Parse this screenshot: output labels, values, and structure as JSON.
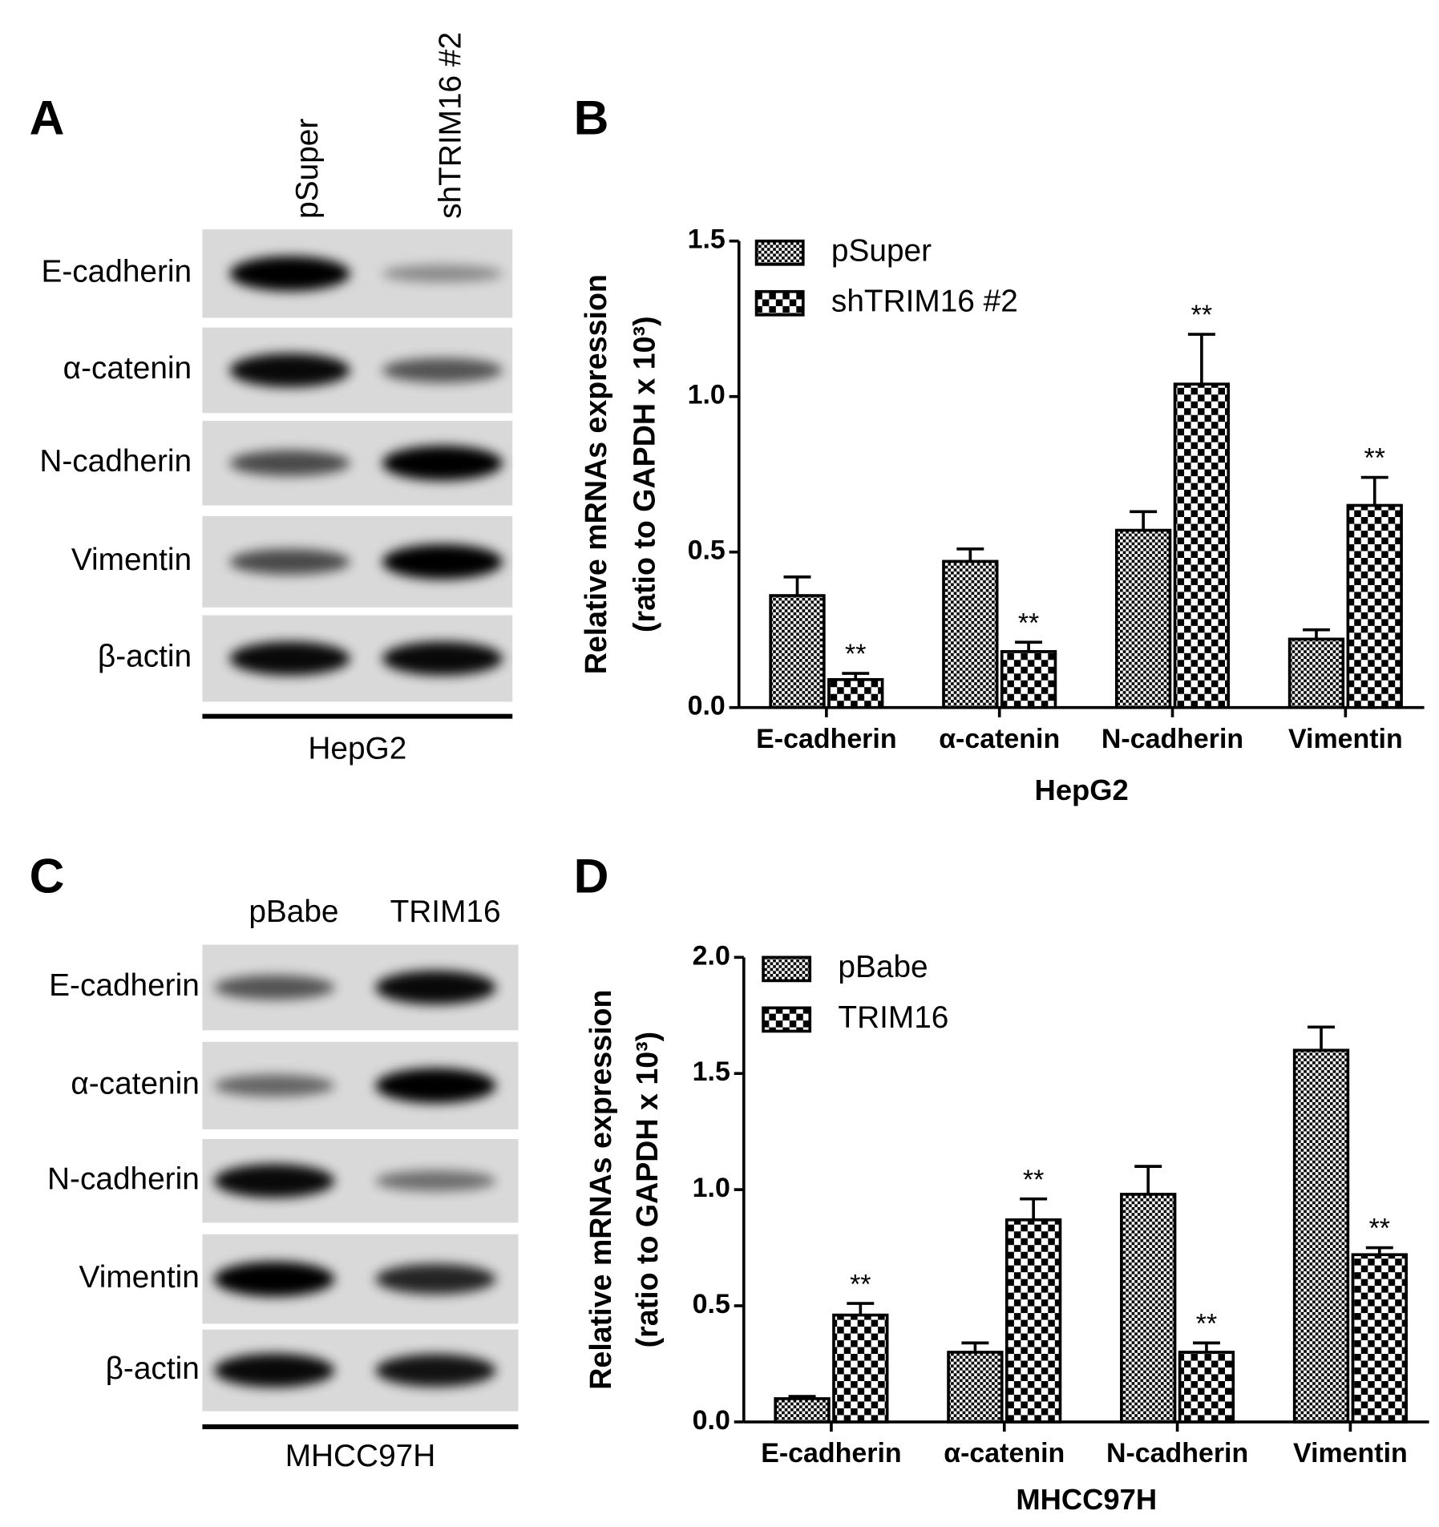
{
  "blots": [
    {
      "panel_label": "A",
      "lanes": [
        "pSuper",
        "shTRIM16 #2"
      ],
      "proteins": [
        "E-cadherin",
        "α-catenin",
        "N-cadherin",
        "Vimentin",
        "β-actin"
      ],
      "cell_line": "HepG2"
    },
    {
      "panel_label": "C",
      "lanes": [
        "pBabe",
        "TRIM16"
      ],
      "proteins": [
        "E-cadherin",
        "α-catenin",
        "N-cadherin",
        "Vimentin",
        "β-actin"
      ],
      "cell_line": "MHCC97H"
    }
  ],
  "chart_data": [
    {
      "type": "bar",
      "panel_label": "B",
      "categories": [
        "E-cadherin",
        "α-catenin",
        "N-cadherin",
        "Vimentin"
      ],
      "xlabel": "HepG2",
      "ylabel": [
        "Relative  mRNAs expression",
        "(ratio to  GAPDH x 10³)"
      ],
      "ylim": [
        0,
        1.5
      ],
      "yticks": [
        {
          "value": 0,
          "label": "0.0"
        },
        {
          "value": 0.5,
          "label": "0.5"
        },
        {
          "value": 1,
          "label": "1.0"
        },
        {
          "value": 1.5,
          "label": "1.5"
        }
      ],
      "legend": "upper left",
      "series": [
        {
          "name": "pSuper",
          "color": "#000000",
          "pattern": "fine",
          "values": [
            0.36,
            0.47,
            0.57,
            0.22
          ],
          "errors": [
            0.06,
            0.04,
            0.06,
            0.03
          ]
        },
        {
          "name": "shTRIM16 #2",
          "color": "#000000",
          "pattern": "coarse",
          "values": [
            0.09,
            0.18,
            1.04,
            0.65
          ],
          "errors": [
            0.02,
            0.03,
            0.16,
            0.09
          ],
          "significance": [
            "**",
            "**",
            "**",
            "**"
          ]
        }
      ]
    },
    {
      "type": "bar",
      "panel_label": "D",
      "categories": [
        "E-cadherin",
        "α-catenin",
        "N-cadherin",
        "Vimentin"
      ],
      "xlabel": "MHCC97H",
      "ylabel": [
        "Relative  mRNAs expression",
        "(ratio to  GAPDH x 10³)"
      ],
      "ylim": [
        0,
        2
      ],
      "yticks": [
        {
          "value": 0,
          "label": "0.0"
        },
        {
          "value": 0.5,
          "label": "0.5"
        },
        {
          "value": 1,
          "label": "1.0"
        },
        {
          "value": 1.5,
          "label": "1.5"
        },
        {
          "value": 2,
          "label": "2.0"
        }
      ],
      "legend": "upper left",
      "series": [
        {
          "name": "pBabe",
          "color": "#000000",
          "pattern": "fine",
          "values": [
            0.1,
            0.3,
            0.98,
            1.6
          ],
          "errors": [
            0.01,
            0.04,
            0.12,
            0.1
          ]
        },
        {
          "name": "TRIM16",
          "color": "#000000",
          "pattern": "coarse",
          "values": [
            0.46,
            0.87,
            0.3,
            0.72
          ],
          "errors": [
            0.05,
            0.09,
            0.04,
            0.03
          ],
          "significance": [
            "**",
            "**",
            "**",
            "**"
          ]
        }
      ]
    }
  ]
}
